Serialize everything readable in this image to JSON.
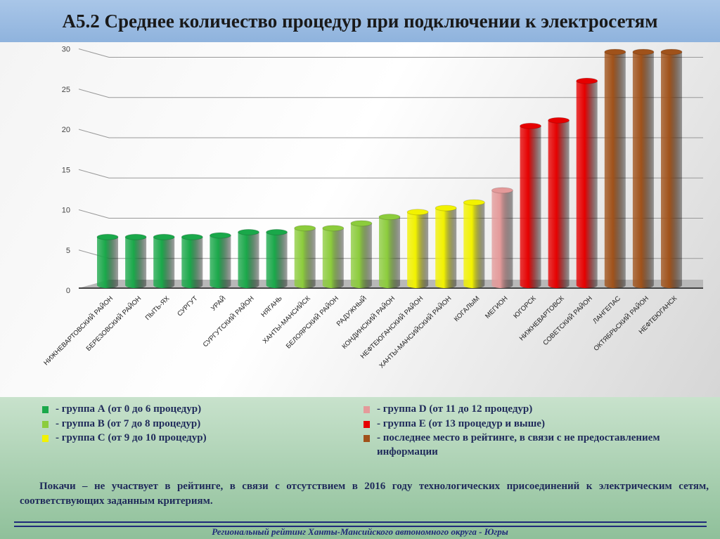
{
  "title": "А5.2 Среднее количество процедур при подключении к электросетям",
  "chart_data": {
    "type": "bar",
    "title": "А5.2 Среднее количество процедур при подключении к электросетям",
    "xlabel": "",
    "ylabel": "",
    "ylim": [
      0,
      30
    ],
    "yticks": [
      0,
      5,
      10,
      15,
      20,
      25,
      30
    ],
    "grid": true,
    "categories": [
      "НИЖНЕВАРТОВСКИЙ РАЙОН",
      "БЕРЕЗОВСКИЙ РАЙОН",
      "ПЫТЬ-ЯХ",
      "СУРГУТ",
      "УРАЙ",
      "СУРГУТСКИЙ РАЙОН",
      "НЯГАНЬ",
      "ХАНТЫ-МАНСИЙСК",
      "БЕЛОЯРСКИЙ РАЙОН",
      "РАДУЖНЫЙ",
      "КОНДИНСКИЙ РАЙОН",
      "НЕФТЕЮГАНСКИЙ РАЙОН",
      "ХАНТЫ-МАНСИЙСКИЙ РАЙОН",
      "КОГАЛЫМ",
      "МЕГИОН",
      "ЮГОРСК",
      "НИЖНЕВАРТОВСК",
      "СОВЕТСКИЙ РАЙОН",
      "ЛАНГЕПАС",
      "ОКТЯБРЬСКИЙ РАЙОН",
      "НЕФТЕЮГАНСК"
    ],
    "values": [
      6.0,
      6.0,
      6.0,
      6.0,
      6.2,
      6.6,
      6.6,
      7.1,
      7.1,
      7.7,
      8.5,
      9.1,
      9.6,
      10.3,
      11.8,
      19.8,
      20.5,
      25.4,
      29,
      29,
      29
    ],
    "groups": [
      "A",
      "A",
      "A",
      "A",
      "A",
      "A",
      "A",
      "B",
      "B",
      "B",
      "B",
      "C",
      "C",
      "C",
      "D",
      "E",
      "E",
      "E",
      "L",
      "L",
      "L"
    ],
    "group_colors": {
      "A": "#1aa84a",
      "B": "#8ccc3c",
      "C": "#f2f200",
      "D": "#e49a9a",
      "E": "#e60000",
      "L": "#a0521a"
    }
  },
  "legend": [
    {
      "color": "#1aa84a",
      "text": "-   группа А (от 0 до 6 процедур)"
    },
    {
      "color": "#8ccc3c",
      "text": "-   группа В (от 7 до 8 процедур)"
    },
    {
      "color": "#f2f200",
      "text": "-   группа С (от 9 до 10 процедур)"
    },
    {
      "color": "#e49a9a",
      "text": "-   группа D (от 11 до 12 процедур)"
    },
    {
      "color": "#e60000",
      "text": "-   группа Е (от 13 процедур и выше)"
    },
    {
      "color": "#a0521a",
      "text": "- последнее место в рейтинге, в связи с не предоставлением информации"
    }
  ],
  "note": "Покачи – не участвует в рейтинге, в связи с отсутствием в 2016 году технологических присоединений к электрическим сетям, соответствующих заданным критериям.",
  "footer": "Региональный рейтинг Ханты-Мансийского автономного округа - Югры"
}
